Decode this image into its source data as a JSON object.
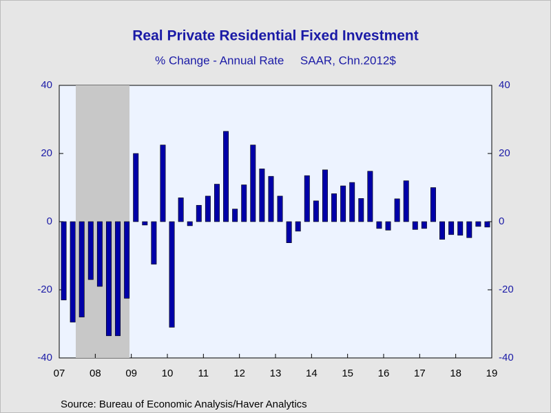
{
  "chart_data": {
    "type": "bar",
    "title": "Real Private Residential Fixed Investment",
    "subtitle": "% Change - Annual Rate     SAAR, Chn.2012$",
    "source": "Source:  Bureau of Economic Analysis/Haver Analytics",
    "color": "#0000a8",
    "categories": [
      null,
      null,
      null,
      null,
      null,
      null,
      null,
      null,
      null,
      null,
      null,
      null,
      null,
      null,
      null,
      null,
      null,
      null,
      null,
      null,
      null,
      null,
      null,
      null,
      null,
      null,
      null,
      null,
      null,
      null,
      null,
      null,
      null,
      null,
      null,
      null,
      null,
      null,
      null,
      null,
      null,
      null,
      null,
      null,
      null,
      null,
      null,
      null
    ],
    "values": [
      -23,
      -29.5,
      -28,
      -17,
      -19,
      -33.5,
      -33.5,
      -22.5,
      20,
      -1,
      -12.5,
      22.5,
      -31,
      7,
      -1.2,
      4.8,
      7.5,
      11,
      26.5,
      3.7,
      10.8,
      22.5,
      15.5,
      13.3,
      7.5,
      -6.2,
      -2.8,
      13.5,
      6.1,
      15.2,
      8.2,
      10.5,
      11.5,
      6.8,
      14.8,
      -2,
      -2.5,
      6.7,
      12,
      -2.3,
      -2,
      10,
      -5.2,
      -3.8,
      -4,
      -4.7,
      -1.4,
      -1.6
    ],
    "year_labels": [
      "07",
      "08",
      "09",
      "10",
      "11",
      "12",
      "13",
      "14",
      "15",
      "16",
      "17",
      "18",
      "19"
    ],
    "ylim": [
      -40,
      40
    ],
    "yticks": [
      -40,
      -20,
      0,
      20,
      40
    ],
    "y2lim": [
      -40,
      40
    ],
    "y2ticks": [
      -40,
      -20,
      0,
      20,
      40
    ]
  }
}
